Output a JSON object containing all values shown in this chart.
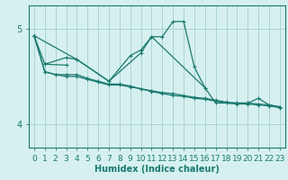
{
  "title": "",
  "xlabel": "Humidex (Indice chaleur)",
  "bg_color": "#d6f0f0",
  "grid_color": "#aad4d4",
  "line_color": "#1a7a6e",
  "xlim": [
    -0.5,
    23.5
  ],
  "ylim": [
    3.75,
    5.25
  ],
  "yticks": [
    4,
    5
  ],
  "xticks": [
    0,
    1,
    2,
    3,
    4,
    5,
    6,
    7,
    8,
    9,
    10,
    11,
    12,
    13,
    14,
    15,
    16,
    17,
    18,
    19,
    20,
    21,
    22,
    23
  ],
  "series": [
    [
      4.93,
      4.63,
      null,
      4.7,
      4.68,
      null,
      null,
      4.45,
      null,
      4.72,
      4.78,
      4.92,
      4.92,
      5.08,
      5.08,
      4.6,
      4.38,
      4.22,
      null,
      null,
      4.22,
      4.27,
      4.2,
      4.18
    ],
    [
      4.93,
      null,
      null,
      null,
      4.68,
      null,
      null,
      4.45,
      null,
      null,
      4.75,
      4.92,
      null,
      null,
      null,
      null,
      4.38,
      null,
      null,
      null,
      null,
      null,
      null,
      null
    ],
    [
      null,
      4.63,
      null,
      4.62,
      null,
      null,
      null,
      null,
      null,
      null,
      null,
      null,
      null,
      null,
      null,
      null,
      null,
      null,
      null,
      null,
      null,
      null,
      null,
      null
    ],
    [
      4.93,
      4.55,
      4.52,
      4.52,
      4.52,
      4.48,
      4.45,
      4.42,
      4.42,
      4.4,
      4.37,
      4.35,
      4.33,
      4.32,
      4.3,
      4.28,
      4.27,
      4.25,
      4.23,
      4.22,
      4.22,
      4.21,
      4.2,
      4.18
    ],
    [
      4.93,
      4.55,
      4.52,
      4.5,
      4.5,
      4.47,
      4.44,
      4.41,
      4.41,
      4.39,
      4.37,
      4.34,
      4.32,
      4.3,
      4.29,
      4.27,
      4.26,
      4.24,
      4.22,
      4.21,
      4.21,
      4.2,
      4.19,
      4.17
    ]
  ]
}
